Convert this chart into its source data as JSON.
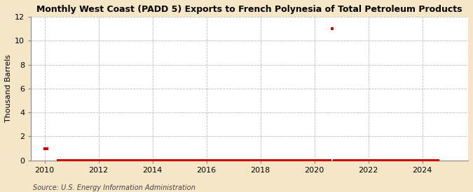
{
  "title": "Monthly West Coast (PADD 5) Exports to French Polynesia of Total Petroleum Products",
  "ylabel": "Thousand Barrels",
  "source_text": "Source: U.S. Energy Information Administration",
  "figure_bg_color": "#f5e6c8",
  "plot_bg_color": "#ffffff",
  "marker_color": "#cc0000",
  "grid_color": "#aaaaaa",
  "xlim": [
    2009.5,
    2025.7
  ],
  "ylim": [
    0,
    12
  ],
  "yticks": [
    0,
    2,
    4,
    6,
    8,
    10,
    12
  ],
  "xticks": [
    2010,
    2012,
    2014,
    2016,
    2018,
    2020,
    2022,
    2024
  ],
  "data_points": [
    [
      2010.0,
      1
    ],
    [
      2010.08,
      1
    ],
    [
      2010.5,
      0
    ],
    [
      2010.58,
      0
    ],
    [
      2010.67,
      0
    ],
    [
      2010.75,
      0
    ],
    [
      2010.83,
      0
    ],
    [
      2010.92,
      0
    ],
    [
      2011.0,
      0
    ],
    [
      2011.08,
      0
    ],
    [
      2011.17,
      0
    ],
    [
      2011.25,
      0
    ],
    [
      2011.33,
      0
    ],
    [
      2011.42,
      0
    ],
    [
      2011.5,
      0
    ],
    [
      2011.58,
      0
    ],
    [
      2011.67,
      0
    ],
    [
      2011.75,
      0
    ],
    [
      2011.83,
      0
    ],
    [
      2011.92,
      0
    ],
    [
      2012.0,
      0
    ],
    [
      2012.08,
      0
    ],
    [
      2012.17,
      0
    ],
    [
      2012.25,
      0
    ],
    [
      2012.33,
      0
    ],
    [
      2012.42,
      0
    ],
    [
      2012.5,
      0
    ],
    [
      2012.58,
      0
    ],
    [
      2012.67,
      0
    ],
    [
      2012.75,
      0
    ],
    [
      2012.83,
      0
    ],
    [
      2012.92,
      0
    ],
    [
      2013.0,
      0
    ],
    [
      2013.08,
      0
    ],
    [
      2013.17,
      0
    ],
    [
      2013.25,
      0
    ],
    [
      2013.33,
      0
    ],
    [
      2013.42,
      0
    ],
    [
      2013.5,
      0
    ],
    [
      2013.58,
      0
    ],
    [
      2013.67,
      0
    ],
    [
      2013.75,
      0
    ],
    [
      2013.83,
      0
    ],
    [
      2013.92,
      0
    ],
    [
      2014.0,
      0
    ],
    [
      2014.08,
      0
    ],
    [
      2014.17,
      0
    ],
    [
      2014.25,
      0
    ],
    [
      2014.33,
      0
    ],
    [
      2014.42,
      0
    ],
    [
      2014.5,
      0
    ],
    [
      2014.58,
      0
    ],
    [
      2014.67,
      0
    ],
    [
      2014.75,
      0
    ],
    [
      2014.83,
      0
    ],
    [
      2014.92,
      0
    ],
    [
      2015.0,
      0
    ],
    [
      2015.08,
      0
    ],
    [
      2015.17,
      0
    ],
    [
      2015.25,
      0
    ],
    [
      2015.33,
      0
    ],
    [
      2015.42,
      0
    ],
    [
      2015.5,
      0
    ],
    [
      2015.58,
      0
    ],
    [
      2015.67,
      0
    ],
    [
      2015.75,
      0
    ],
    [
      2015.83,
      0
    ],
    [
      2015.92,
      0
    ],
    [
      2016.0,
      0
    ],
    [
      2016.08,
      0
    ],
    [
      2016.17,
      0
    ],
    [
      2016.25,
      0
    ],
    [
      2016.33,
      0
    ],
    [
      2016.42,
      0
    ],
    [
      2016.5,
      0
    ],
    [
      2016.58,
      0
    ],
    [
      2016.67,
      0
    ],
    [
      2016.75,
      0
    ],
    [
      2016.83,
      0
    ],
    [
      2016.92,
      0
    ],
    [
      2017.0,
      0
    ],
    [
      2017.08,
      0
    ],
    [
      2017.17,
      0
    ],
    [
      2017.25,
      0
    ],
    [
      2017.33,
      0
    ],
    [
      2017.42,
      0
    ],
    [
      2017.5,
      0
    ],
    [
      2017.58,
      0
    ],
    [
      2017.67,
      0
    ],
    [
      2017.75,
      0
    ],
    [
      2017.83,
      0
    ],
    [
      2017.92,
      0
    ],
    [
      2018.0,
      0
    ],
    [
      2018.08,
      0
    ],
    [
      2018.17,
      0
    ],
    [
      2018.25,
      0
    ],
    [
      2018.33,
      0
    ],
    [
      2018.42,
      0
    ],
    [
      2018.5,
      0
    ],
    [
      2018.58,
      0
    ],
    [
      2018.67,
      0
    ],
    [
      2018.75,
      0
    ],
    [
      2018.83,
      0
    ],
    [
      2018.92,
      0
    ],
    [
      2019.0,
      0
    ],
    [
      2019.08,
      0
    ],
    [
      2019.17,
      0
    ],
    [
      2019.25,
      0
    ],
    [
      2019.33,
      0
    ],
    [
      2019.42,
      0
    ],
    [
      2019.5,
      0
    ],
    [
      2019.58,
      0
    ],
    [
      2019.67,
      0
    ],
    [
      2019.75,
      0
    ],
    [
      2019.83,
      0
    ],
    [
      2019.92,
      0
    ],
    [
      2020.0,
      0
    ],
    [
      2020.08,
      0
    ],
    [
      2020.17,
      0
    ],
    [
      2020.25,
      0
    ],
    [
      2020.33,
      0
    ],
    [
      2020.42,
      0
    ],
    [
      2020.5,
      0
    ],
    [
      2020.58,
      0
    ],
    [
      2020.67,
      11
    ],
    [
      2020.75,
      0
    ],
    [
      2020.83,
      0
    ],
    [
      2020.92,
      0
    ],
    [
      2021.0,
      0
    ],
    [
      2021.08,
      0
    ],
    [
      2021.17,
      0
    ],
    [
      2021.25,
      0
    ],
    [
      2021.33,
      0
    ],
    [
      2021.42,
      0
    ],
    [
      2021.5,
      0
    ],
    [
      2021.58,
      0
    ],
    [
      2021.67,
      0
    ],
    [
      2021.75,
      0
    ],
    [
      2021.83,
      0
    ],
    [
      2021.92,
      0
    ],
    [
      2022.0,
      0
    ],
    [
      2022.08,
      0
    ],
    [
      2022.17,
      0
    ],
    [
      2022.25,
      0
    ],
    [
      2022.33,
      0
    ],
    [
      2022.42,
      0
    ],
    [
      2022.5,
      0
    ],
    [
      2022.58,
      0
    ],
    [
      2022.67,
      0
    ],
    [
      2022.75,
      0
    ],
    [
      2022.83,
      0
    ],
    [
      2022.92,
      0
    ],
    [
      2023.0,
      0
    ],
    [
      2023.08,
      0
    ],
    [
      2023.17,
      0
    ],
    [
      2023.25,
      0
    ],
    [
      2023.33,
      0
    ],
    [
      2023.42,
      0
    ],
    [
      2023.5,
      0
    ],
    [
      2023.58,
      0
    ],
    [
      2023.67,
      0
    ],
    [
      2023.75,
      0
    ],
    [
      2023.83,
      0
    ],
    [
      2023.92,
      0
    ],
    [
      2024.0,
      0
    ],
    [
      2024.08,
      0
    ],
    [
      2024.17,
      0
    ],
    [
      2024.25,
      0
    ],
    [
      2024.33,
      0
    ],
    [
      2024.42,
      0
    ],
    [
      2024.5,
      0
    ],
    [
      2024.58,
      0
    ]
  ]
}
